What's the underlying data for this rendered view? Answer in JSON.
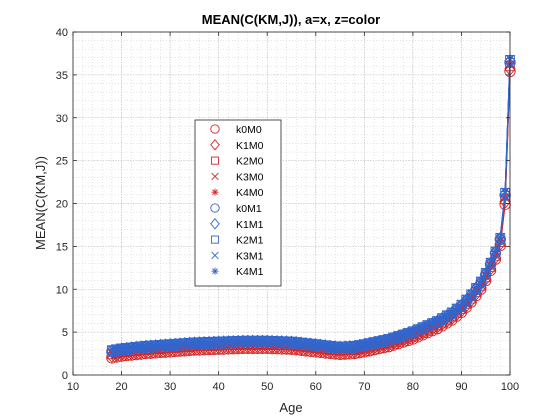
{
  "chart_data": {
    "type": "scatter",
    "title": "MEAN(C(KM,J)), a=x, z=color",
    "xlabel": "Age",
    "ylabel": "MEAN(C(KM,J))",
    "xlim": [
      10,
      100
    ],
    "ylim": [
      0,
      40
    ],
    "xticks": [
      "10",
      "20",
      "30",
      "40",
      "50",
      "60",
      "70",
      "80",
      "90",
      "100"
    ],
    "yticks": [
      "0",
      "5",
      "10",
      "15",
      "20",
      "25",
      "30",
      "35",
      "40"
    ],
    "grid": "on (major and minor, dotted)",
    "legend_position": "inside-left",
    "colors": {
      "red": "#d62728",
      "blue": "#3366cc"
    },
    "series": [
      {
        "name": "k0M0",
        "marker": "circle",
        "color": "#d62728",
        "offset": -0.4
      },
      {
        "name": "K1M0",
        "marker": "diamond",
        "color": "#d62728",
        "offset": -0.2
      },
      {
        "name": "K2M0",
        "marker": "square",
        "color": "#d62728",
        "offset": 0.0
      },
      {
        "name": "K3M0",
        "marker": "x",
        "color": "#d62728",
        "offset": 0.1
      },
      {
        "name": "K4M0",
        "marker": "asterisk",
        "color": "#d62728",
        "offset": 0.2
      },
      {
        "name": "k0M1",
        "marker": "circle",
        "color": "#3366cc",
        "offset": 0.3
      },
      {
        "name": "K1M1",
        "marker": "diamond",
        "color": "#3366cc",
        "offset": 0.4
      },
      {
        "name": "K2M1",
        "marker": "square",
        "color": "#3366cc",
        "offset": 0.5
      },
      {
        "name": "K3M1",
        "marker": "x",
        "color": "#3366cc",
        "offset": 0.55
      },
      {
        "name": "K4M1",
        "marker": "asterisk",
        "color": "#3366cc",
        "offset": 0.6
      }
    ],
    "base_curve": {
      "x": [
        18,
        20,
        25,
        30,
        35,
        40,
        45,
        50,
        55,
        60,
        63,
        65,
        68,
        70,
        75,
        80,
        85,
        88,
        90,
        92,
        94,
        95,
        96,
        97,
        98,
        99,
        100
      ],
      "y": [
        2.4,
        2.6,
        2.9,
        3.1,
        3.3,
        3.4,
        3.5,
        3.5,
        3.4,
        3.1,
        2.9,
        2.8,
        2.9,
        3.1,
        3.7,
        4.6,
        5.8,
        6.8,
        7.7,
        8.9,
        10.4,
        11.4,
        12.6,
        13.9,
        15.5,
        20.5,
        36.0
      ]
    },
    "point_ages": {
      "start": 18,
      "end": 100,
      "step": 1
    }
  }
}
